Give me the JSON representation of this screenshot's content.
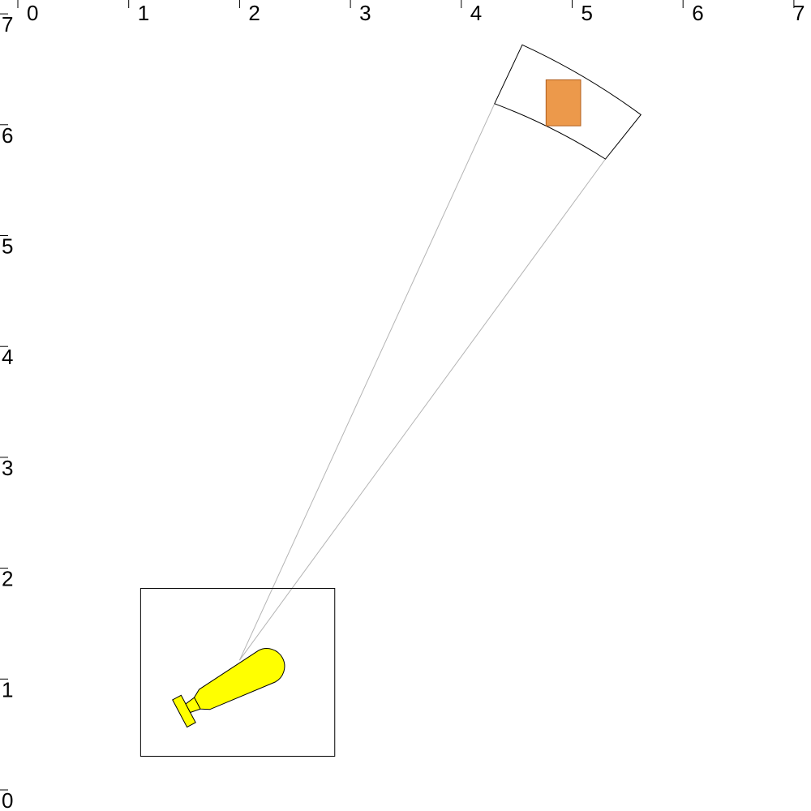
{
  "axes": {
    "x_ticks": [
      "0",
      "1",
      "2",
      "3",
      "4",
      "5",
      "6",
      "7"
    ],
    "y_ticks": [
      "0",
      "1",
      "2",
      "3",
      "4",
      "5",
      "6",
      "7"
    ],
    "x_range": [
      0,
      7
    ],
    "y_range": [
      0,
      7
    ]
  },
  "scene": {
    "colors": {
      "camera_fill": "#ffff00",
      "target_fill": "#ec994b",
      "target_stroke": "#b05e1e",
      "frustum_line": "#b4b4b4",
      "outline": "#000000",
      "background": "#ffffff"
    },
    "camera": {
      "icon": "flashlight-camera-icon",
      "bounding_box_world": {
        "x": [
          1.1,
          2.8
        ],
        "y": [
          0.45,
          1.92
        ]
      }
    },
    "view_frustum": {
      "apex": [
        2.0,
        1.28
      ],
      "near_arc_left": [
        4.3,
        6.3
      ],
      "near_arc_right": [
        5.3,
        5.8
      ],
      "far_arc_left": [
        4.55,
        6.83
      ],
      "far_arc_right": [
        5.62,
        6.2
      ]
    },
    "target": {
      "icon": "target-square-icon",
      "x": [
        4.75,
        5.15
      ],
      "y": [
        6.1,
        6.5
      ]
    }
  }
}
